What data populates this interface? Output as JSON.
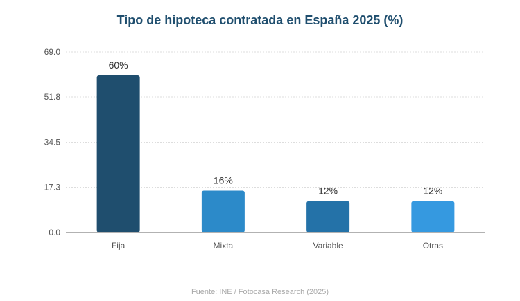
{
  "chart_data": {
    "type": "bar",
    "title": "Tipo de hipoteca contratada en España 2025 (%)",
    "categories": [
      "Fija",
      "Mixta",
      "Variable",
      "Otras"
    ],
    "values": [
      60,
      16,
      12,
      12
    ],
    "value_labels": [
      "60%",
      "16%",
      "12%",
      "12%"
    ],
    "bar_colors": [
      "#1f4e6e",
      "#2c8ac9",
      "#2472a8",
      "#3599e0"
    ],
    "y_ticks": [
      "0.0",
      "17.3",
      "34.5",
      "51.8",
      "69.0"
    ],
    "y_tick_values": [
      0,
      17.3,
      34.5,
      51.8,
      69.0
    ],
    "ylim": [
      0,
      69.0
    ],
    "xlabel": "",
    "ylabel": "",
    "grid": true,
    "source": "Fuente: INE / Fotocasa Research (2025)"
  },
  "colors": {
    "title": "#1f4e6e",
    "axis_text": "#555555",
    "value_text": "#333333",
    "source_text": "#aaaaaa",
    "grid": "#dddddd",
    "axis_line": "#999999"
  }
}
